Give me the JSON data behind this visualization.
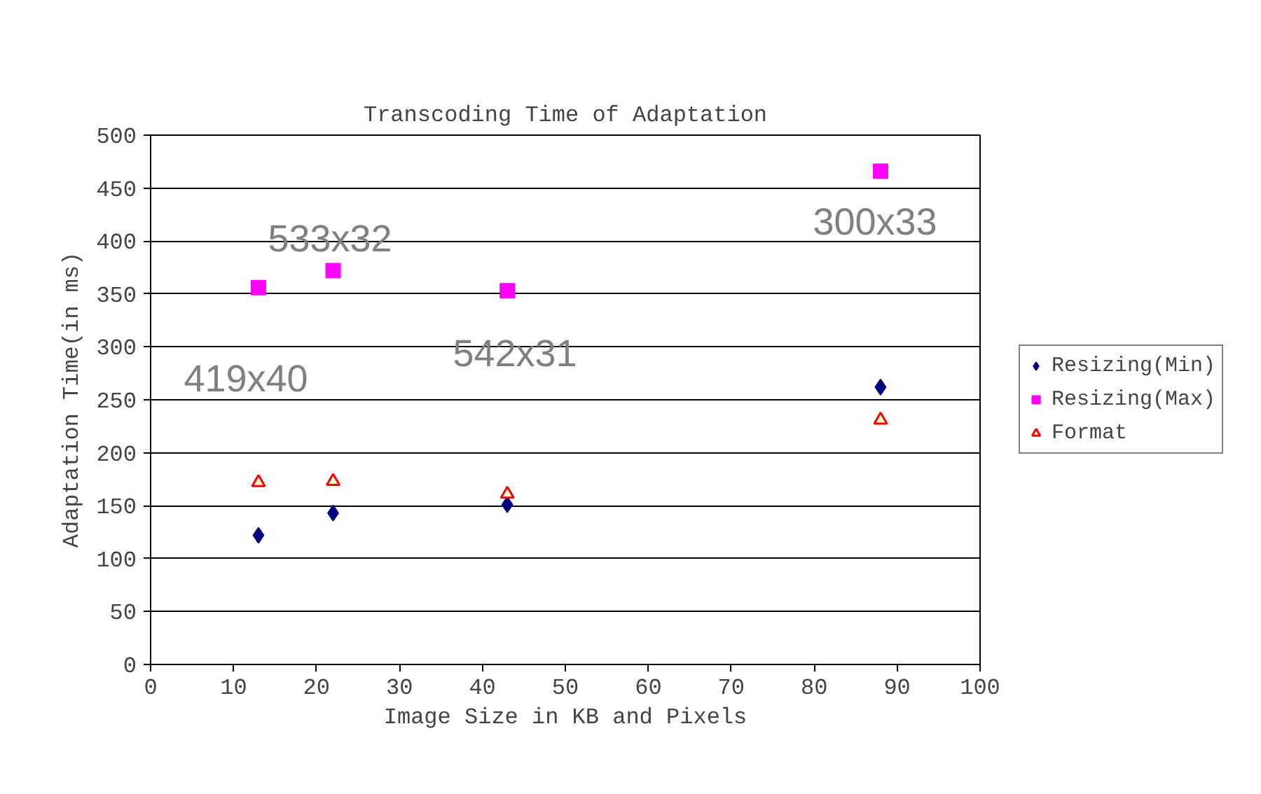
{
  "chart_data": {
    "type": "scatter",
    "title": "Transcoding Time of Adaptation",
    "xlabel": "Image Size in KB and Pixels",
    "ylabel": "Adaptation Time(in ms)",
    "x": [
      13,
      22,
      43,
      88
    ],
    "series": [
      {
        "name": "Resizing(Min)",
        "color": "#000080",
        "marker": "diamond",
        "values": [
          122,
          143,
          151,
          262
        ]
      },
      {
        "name": "Resizing(Max)",
        "color": "#ff00ff",
        "marker": "square",
        "values": [
          356,
          372,
          353,
          466
        ]
      },
      {
        "name": "Format",
        "color": "#ff0000",
        "marker": "triangle",
        "values": [
          172,
          173,
          161,
          231
        ]
      }
    ],
    "xlim": [
      0,
      100
    ],
    "xticks": [
      0,
      10,
      20,
      30,
      40,
      50,
      60,
      70,
      80,
      90,
      100
    ],
    "ylim": [
      0,
      500
    ],
    "yticks": [
      0,
      50,
      100,
      150,
      200,
      250,
      300,
      350,
      400,
      450,
      500
    ],
    "grid": "y",
    "legend": "right",
    "annotations": [
      "419x40",
      "533x32",
      "542x31",
      "300x33"
    ]
  }
}
